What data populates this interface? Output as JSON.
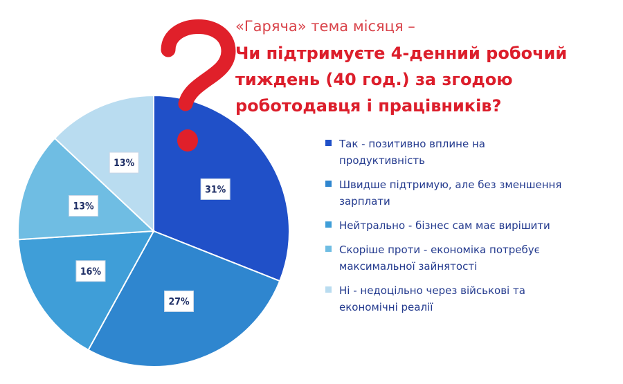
{
  "chart_data": {
    "type": "pie",
    "subtitle": "«Гаряча» тема місяця –",
    "title": "Чи підтримуєте 4-денний робочий тиждень (40 год.) за згодою роботодавця і працівників?",
    "legend_position": "right",
    "slices": [
      {
        "label": "Так - позитивно вплине на продуктивність",
        "value": 31,
        "value_label": "31%",
        "color": "#2050c8"
      },
      {
        "label": "Швидше підтримую, але без зменшення зарплати",
        "value": 27,
        "value_label": "27%",
        "color": "#2f86cf"
      },
      {
        "label": "Нейтрально - бізнес сам має вирішити",
        "value": 16,
        "value_label": "16%",
        "color": "#3f9ed8"
      },
      {
        "label": "Скоріше проти - економіка потребує максимальної зайнятості",
        "value": 13,
        "value_label": "13%",
        "color": "#6fbde3"
      },
      {
        "label": "Ні - недоцільно через військові та економічні реалії",
        "value": 13,
        "value_label": "13%",
        "color": "#b9dcf0"
      }
    ]
  },
  "decoration": {
    "question_mark_color": "#e0202a",
    "question_mark_icon": "question-mark-icon"
  }
}
